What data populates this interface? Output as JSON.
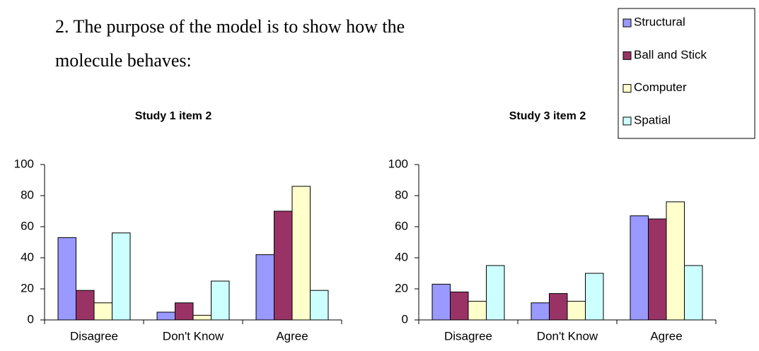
{
  "heading": [
    "2. The purpose of the model is to show how the",
    "molecule behaves:"
  ],
  "chart_data": [
    {
      "type": "bar",
      "title": "Study 1 item 2",
      "categories": [
        "Disagree",
        "Don't Know",
        "Agree"
      ],
      "series": [
        {
          "name": "Structural",
          "color": "#9999ff",
          "values": [
            53,
            5,
            42
          ]
        },
        {
          "name": "Ball and Stick",
          "color": "#993366",
          "values": [
            19,
            11,
            70
          ]
        },
        {
          "name": "Computer",
          "color": "#ffffcc",
          "values": [
            11,
            3,
            86
          ]
        },
        {
          "name": "Spatial",
          "color": "#ccffff",
          "values": [
            56,
            25,
            19
          ]
        }
      ],
      "ylim": [
        0,
        100
      ],
      "yticks": [
        0,
        20,
        40,
        60,
        80,
        100
      ],
      "legend": "top-right"
    },
    {
      "type": "bar",
      "title": "Study 3 item 2",
      "categories": [
        "Disagree",
        "Don't Know",
        "Agree"
      ],
      "series": [
        {
          "color": "#9999ff",
          "values": [
            23,
            11,
            67
          ]
        },
        {
          "color": "#993366",
          "values": [
            18,
            17,
            65
          ]
        },
        {
          "color": "#ffffcc",
          "values": [
            12,
            12,
            76
          ]
        },
        {
          "color": "#ccffff",
          "values": [
            35,
            30,
            35
          ]
        }
      ],
      "ylim": [
        0,
        100
      ],
      "yticks": [
        0,
        20,
        40,
        60,
        80,
        100
      ]
    }
  ]
}
